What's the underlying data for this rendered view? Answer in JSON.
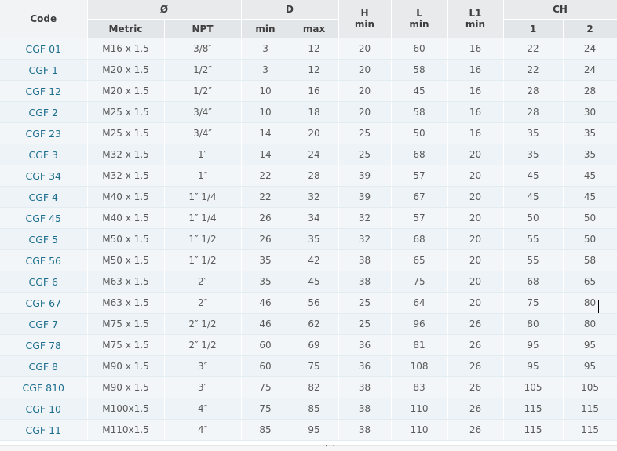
{
  "header": {
    "code": "Code",
    "diameter": "Ø",
    "d": "D",
    "h": "H",
    "h_sub": "min",
    "l": "L",
    "l_sub": "min",
    "l1": "L1",
    "l1_sub": "min",
    "ch": "CH",
    "metric": "Metric",
    "npt": "NPT",
    "d_min": "min",
    "d_max": "max",
    "ch_1": "1",
    "ch_2": "2"
  },
  "rows": [
    [
      "CGF 01",
      "M16 x 1.5",
      "3/8″",
      "3",
      "12",
      "20",
      "60",
      "16",
      "22",
      "24"
    ],
    [
      "CGF 1",
      "M20 x 1.5",
      "1/2″",
      "3",
      "12",
      "20",
      "58",
      "16",
      "22",
      "24"
    ],
    [
      "CGF 12",
      "M20 x 1.5",
      "1/2″",
      "10",
      "16",
      "20",
      "45",
      "16",
      "28",
      "28"
    ],
    [
      "CGF 2",
      "M25 x 1.5",
      "3/4″",
      "10",
      "18",
      "20",
      "58",
      "16",
      "28",
      "30"
    ],
    [
      "CGF 23",
      "M25 x 1.5",
      "3/4″",
      "14",
      "20",
      "25",
      "50",
      "16",
      "35",
      "35"
    ],
    [
      "CGF 3",
      "M32 x 1.5",
      "1″",
      "14",
      "24",
      "25",
      "68",
      "20",
      "35",
      "35"
    ],
    [
      "CGF 34",
      "M32 x 1.5",
      "1″",
      "22",
      "28",
      "39",
      "57",
      "20",
      "45",
      "45"
    ],
    [
      "CGF 4",
      "M40 x 1.5",
      "1″ 1/4",
      "22",
      "32",
      "39",
      "67",
      "20",
      "45",
      "45"
    ],
    [
      "CGF 45",
      "M40 x 1.5",
      "1″ 1/4",
      "26",
      "34",
      "32",
      "57",
      "20",
      "50",
      "50"
    ],
    [
      "CGF 5",
      "M50 x 1.5",
      "1″ 1/2",
      "26",
      "35",
      "32",
      "68",
      "20",
      "55",
      "50"
    ],
    [
      "CGF 56",
      "M50 x 1.5",
      "1″ 1/2",
      "35",
      "42",
      "38",
      "65",
      "20",
      "55",
      "58"
    ],
    [
      "CGF 6",
      "M63 x 1.5",
      "2″",
      "35",
      "45",
      "38",
      "75",
      "20",
      "68",
      "65"
    ],
    [
      "CGF 67",
      "M63 x 1.5",
      "2″",
      "46",
      "56",
      "25",
      "64",
      "20",
      "75",
      "80"
    ],
    [
      "CGF 7",
      "M75 x 1.5",
      "2″ 1/2",
      "46",
      "62",
      "25",
      "96",
      "26",
      "80",
      "80"
    ],
    [
      "CGF 78",
      "M75 x 1.5",
      "2″ 1/2",
      "60",
      "69",
      "36",
      "81",
      "26",
      "95",
      "95"
    ],
    [
      "CGF 8",
      "M90 x 1.5",
      "3″",
      "60",
      "75",
      "36",
      "108",
      "26",
      "95",
      "95"
    ],
    [
      "CGF 810",
      "M90 x 1.5",
      "3″",
      "75",
      "82",
      "38",
      "83",
      "26",
      "105",
      "105"
    ],
    [
      "CGF 10",
      "M100x1.5",
      "4″",
      "75",
      "85",
      "38",
      "110",
      "26",
      "115",
      "115"
    ],
    [
      "CGF 11",
      "M110x1.5",
      "4″",
      "85",
      "95",
      "38",
      "110",
      "26",
      "115",
      "115"
    ]
  ],
  "footer": {
    "handle": "'''"
  }
}
